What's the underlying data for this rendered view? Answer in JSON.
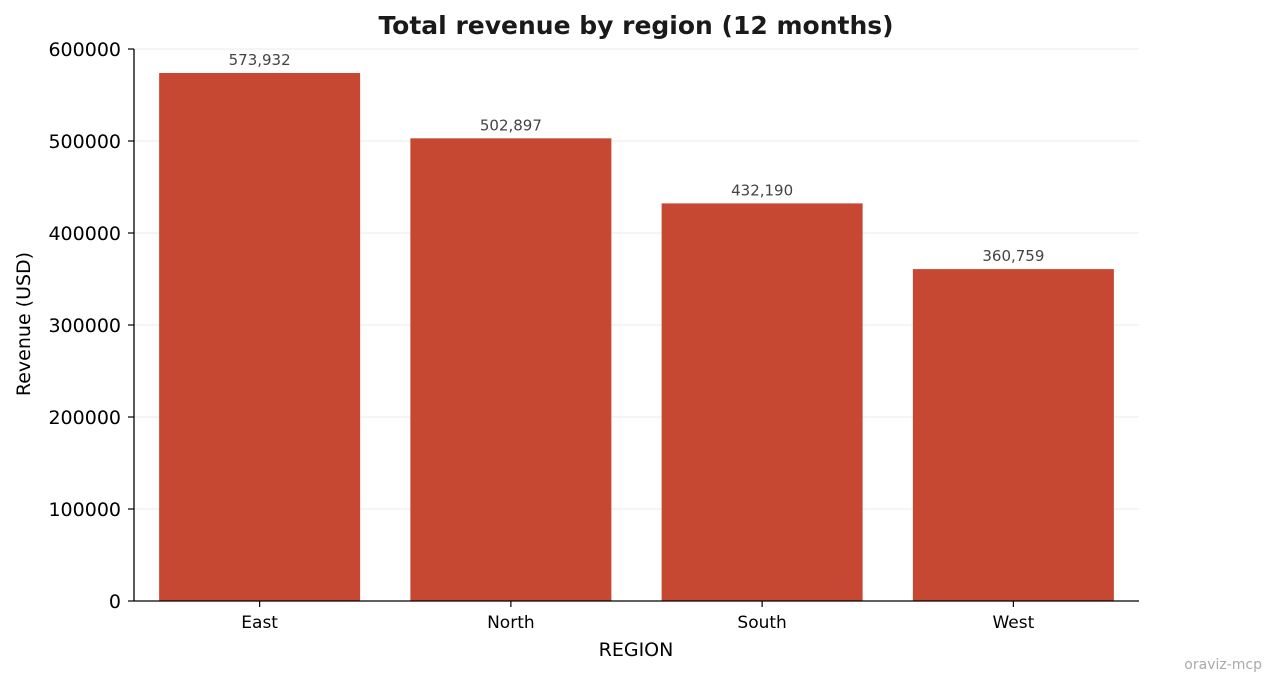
{
  "chart_data": {
    "type": "bar",
    "title": "Total revenue by region (12 months)",
    "xlabel": "REGION",
    "ylabel": "Revenue (USD)",
    "categories": [
      "East",
      "North",
      "South",
      "West"
    ],
    "values": [
      573932,
      502897,
      432190,
      360759
    ],
    "data_labels": [
      "573,932",
      "502,897",
      "432,190",
      "360,759"
    ],
    "ylim": [
      0,
      600000
    ],
    "yticks": [
      0,
      100000,
      200000,
      300000,
      400000,
      500000,
      600000
    ],
    "ytick_labels": [
      "0",
      "100000",
      "200000",
      "300000",
      "400000",
      "500000",
      "600000"
    ],
    "grid": "horizontal",
    "bar_color": "#c64832",
    "grid_color": "#ebebeb"
  },
  "watermark": "oraviz-mcp"
}
